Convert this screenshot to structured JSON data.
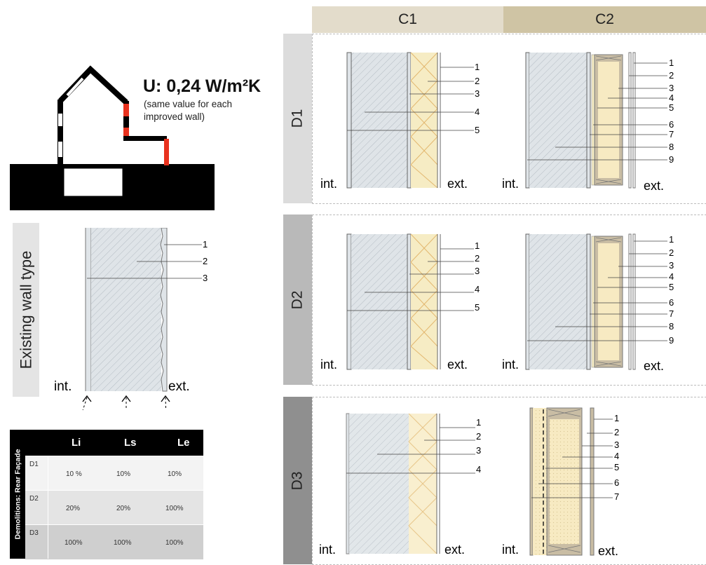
{
  "u_value": {
    "title": "U: 0,24 W/m²K",
    "note_lines": [
      "(same value for each",
      "improved wall)"
    ]
  },
  "existing": {
    "label": "Existing wall type",
    "numbers": [
      "1",
      "2",
      "3"
    ],
    "int_label": "int.",
    "ext_label": "ext."
  },
  "columns": [
    "C1",
    "C2"
  ],
  "rows": [
    "D1",
    "D2",
    "D3"
  ],
  "walls": {
    "int_label": "int.",
    "ext_label": "ext.",
    "c1_d1": [
      "1",
      "2",
      "3",
      "4",
      "5"
    ],
    "c2_d1": [
      "1",
      "2",
      "3",
      "4",
      "5",
      "6",
      "7",
      "8",
      "9"
    ],
    "c1_d2": [
      "1",
      "2",
      "3",
      "4",
      "5"
    ],
    "c2_d2": [
      "1",
      "2",
      "3",
      "4",
      "5",
      "6",
      "7",
      "8",
      "9"
    ],
    "c1_d3": [
      "1",
      "2",
      "3",
      "4"
    ],
    "c2_d3": [
      "1",
      "2",
      "3",
      "4",
      "5",
      "6",
      "7"
    ]
  },
  "demolitions": {
    "title": "Demolitions: Rear Façade",
    "headers": [
      "Li",
      "Ls",
      "Le"
    ],
    "rows": [
      {
        "label": "D1",
        "values": [
          "10 %",
          "10%",
          "10%"
        ]
      },
      {
        "label": "D2",
        "values": [
          "20%",
          "20%",
          "100%"
        ]
      },
      {
        "label": "D3",
        "values": [
          "100%",
          "100%",
          "100%"
        ]
      }
    ]
  },
  "colors": {
    "header_c1": "#e3dccb",
    "header_c2": "#cfc4a4",
    "tab_d1": "#dcdcdc",
    "tab_d2": "#b9b9b9",
    "tab_d3": "#8f8f8f",
    "insulation": "#f6ecc4",
    "wall_grey": "#dde2e6",
    "improved_red": "#e8321e",
    "row_d1": "#f3f3f3",
    "row_d2": "#e4e4e4",
    "row_d3": "#cfcfcf"
  }
}
